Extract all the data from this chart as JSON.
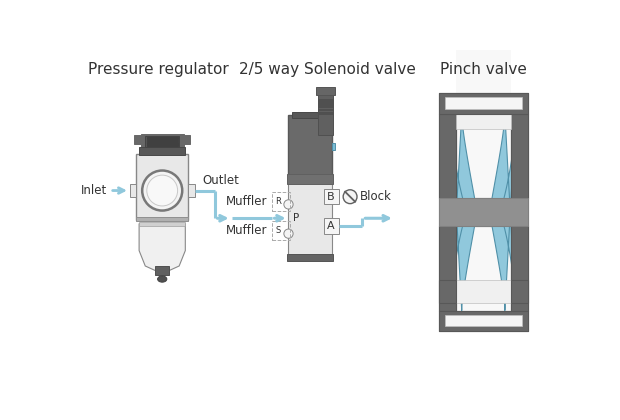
{
  "title_1": "Pressure regulator",
  "title_2": "2/5 way Solenoid valve",
  "title_3": "Pinch valve",
  "label_inlet": "Inlet",
  "label_outlet": "Outlet",
  "label_muffler_top": "Muffler",
  "label_muffler_bot": "Muffler",
  "label_block": "Block",
  "label_B": "B",
  "label_P": "P",
  "label_A": "A",
  "bg_color": "#ffffff",
  "dark_gray": "#686868",
  "mid_gray": "#888888",
  "light_gray": "#c8c8c8",
  "lighter_gray": "#e8e8e8",
  "very_light_gray": "#f4f4f4",
  "blue_arrow": "#90c8dc",
  "text_color": "#333333",
  "title_fontsize": 11,
  "label_fontsize": 8.5
}
